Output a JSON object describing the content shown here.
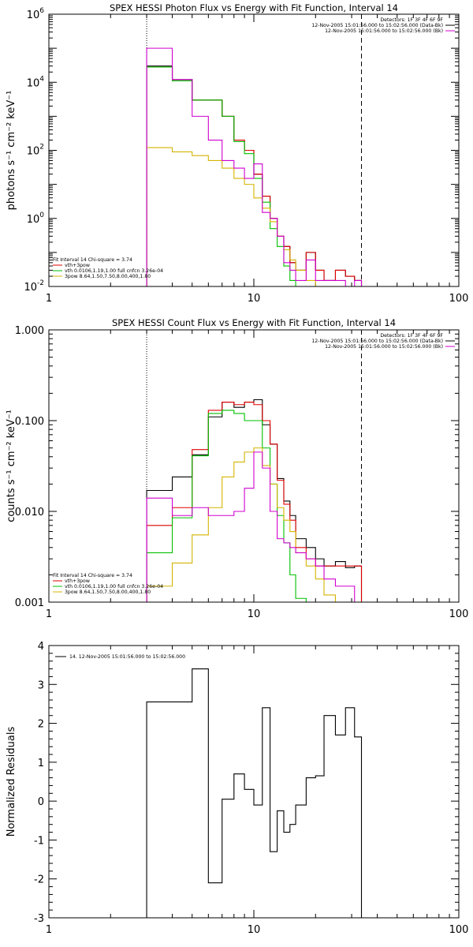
{
  "chart_data": [
    {
      "type": "line",
      "title": "SPEX HESSI Photon Flux vs Energy with Fit Function, Interval 14",
      "ylabel": "photons s⁻¹ cm⁻² keV⁻¹",
      "xscale": "log",
      "yscale": "log",
      "xlim": [
        1,
        100
      ],
      "ylim": [
        0.01,
        1000000
      ],
      "xticks": [
        "1",
        "10",
        "100"
      ],
      "ytick_values": [
        0.01,
        1,
        100,
        10000,
        1000000
      ],
      "ytick_labels": [
        [
          "10",
          "-2"
        ],
        [
          "10",
          "0"
        ],
        [
          "10",
          "2"
        ],
        [
          "10",
          "4"
        ],
        [
          "10",
          "6"
        ]
      ],
      "vlines": [
        {
          "x": 3,
          "style": "dotted"
        },
        {
          "x": 33.5,
          "style": "dashed"
        }
      ],
      "info_lines": [
        "Detectors: 1F 3F 4F 6F 9F",
        "12-Nov-2005 15:01:56.000 to 15:02:56.000 (Data-Bk)",
        "12-Nov-2005 15:01:56.000 to 15:02:56.000 (Bk)"
      ],
      "info_colors": [
        "",
        "#000000",
        "#d000d0"
      ],
      "fit_lines": [
        "Fit Interval 14   Chi-square = 3.74",
        "vth+3pow",
        "vth 0.0106,1.19,1.00  full cnfcn 3.26e-04",
        "3pow 8.64,1.50,7.50,8.00,400,1.80"
      ],
      "fit_colors": [
        "#000000",
        "#e00000",
        "#00c000",
        "#d4b400"
      ],
      "bin_edges": [
        3,
        4,
        5,
        6,
        7,
        8,
        9,
        10,
        11,
        12,
        13,
        14,
        15,
        16,
        18,
        20,
        22,
        25,
        28,
        31,
        33.5
      ],
      "series": [
        {
          "name": "data",
          "color": "#000000",
          "values": [
            30000,
            12000,
            3000,
            3000,
            1000,
            200,
            100,
            20,
            4.5,
            1.0,
            0.3,
            0.15,
            0.05,
            0.03,
            0.1,
            0.03,
            0.015,
            0.03,
            0.02,
            0.015
          ]
        },
        {
          "name": "vth+3pow",
          "color": "#e00000",
          "values": [
            28000,
            11000,
            3000,
            3000,
            1000,
            200,
            100,
            20,
            4.5,
            1.0,
            0.3,
            0.15,
            0.05,
            0.03,
            0.1,
            0.03,
            0.015,
            0.03,
            0.02,
            0.015
          ]
        },
        {
          "name": "vth",
          "color": "#00c000",
          "values": [
            28000,
            11000,
            3000,
            3000,
            1000,
            180,
            80,
            15,
            3.0,
            0.5,
            0.15,
            0.04,
            0.015,
            0.01,
            0.01,
            0.01,
            0.01,
            0.01,
            0.01,
            0.01
          ]
        },
        {
          "name": "3pow",
          "color": "#d4b400",
          "values": [
            120,
            90,
            70,
            50,
            30,
            15,
            10,
            4,
            2.0,
            0.8,
            0.3,
            0.12,
            0.06,
            0.03,
            0.015,
            0.01,
            0.01,
            0.01,
            0.01,
            0.01
          ]
        },
        {
          "name": "bk",
          "color": "#d000d0",
          "values": [
            100000,
            12000,
            1000,
            200,
            50,
            30,
            15,
            40,
            1.5,
            1.0,
            0.3,
            0.05,
            0.03,
            0.015,
            0.06,
            0.015,
            0.015,
            0.015,
            0.01,
            0.015
          ]
        }
      ]
    },
    {
      "type": "line",
      "title": "SPEX HESSI Count Flux vs Energy with Fit Function, Interval 14",
      "ylabel": "counts s⁻¹ cm⁻² keV⁻¹",
      "xscale": "log",
      "yscale": "log",
      "xlim": [
        1,
        100
      ],
      "ylim": [
        0.001,
        1.0
      ],
      "xticks": [
        "1",
        "10",
        "100"
      ],
      "ytick_values": [
        0.001,
        0.01,
        0.1,
        1.0
      ],
      "ytick_labels": [
        [
          "0.001",
          ""
        ],
        [
          "0.010",
          ""
        ],
        [
          "0.100",
          ""
        ],
        [
          "1.000",
          ""
        ]
      ],
      "vlines": [
        {
          "x": 3,
          "style": "dotted"
        },
        {
          "x": 33.5,
          "style": "dashed"
        }
      ],
      "info_lines": [
        "Detectors: 1F 3F 4F 6F 9F",
        "12-Nov-2005 15:01:56.000 to 15:02:56.000 (Data-Bk)",
        "12-Nov-2005 15:01:56.000 to 15:02:56.000 (Bk)"
      ],
      "info_colors": [
        "",
        "#000000",
        "#d000d0"
      ],
      "fit_lines": [
        "Fit Interval 14   Chi-square = 3.74",
        "vth+3pow",
        "vth 0.0106,1.19,1.00  full cnfcn 3.26e-04",
        "3pow 8.64,1.50,7.50,8.00,400,1.80"
      ],
      "fit_colors": [
        "#000000",
        "#e00000",
        "#00c000",
        "#d4b400"
      ],
      "bin_edges": [
        3,
        4,
        5,
        6,
        7,
        8,
        9,
        10,
        11,
        12,
        13,
        14,
        15,
        16,
        18,
        20,
        22,
        25,
        28,
        31,
        33.5
      ],
      "series": [
        {
          "name": "data",
          "color": "#000000",
          "values": [
            0.017,
            0.024,
            0.042,
            0.11,
            0.16,
            0.14,
            0.16,
            0.17,
            0.09,
            0.055,
            0.023,
            0.013,
            0.009,
            0.005,
            0.004,
            0.003,
            0.0025,
            0.0028,
            0.0024,
            0.0025
          ]
        },
        {
          "name": "vth+3pow",
          "color": "#e00000",
          "values": [
            0.007,
            0.011,
            0.048,
            0.13,
            0.16,
            0.15,
            0.16,
            0.15,
            0.1,
            0.055,
            0.022,
            0.012,
            0.008,
            0.004,
            0.003,
            0.0025,
            0.0025,
            0.0025,
            0.0025,
            0.0025
          ]
        },
        {
          "name": "vth",
          "color": "#00c000",
          "values": [
            0.0035,
            0.0085,
            0.041,
            0.12,
            0.13,
            0.12,
            0.1,
            0.1,
            0.05,
            0.02,
            0.009,
            0.0045,
            0.002,
            0.0011,
            0.001,
            0.001,
            0.001,
            0.001,
            0.001,
            0.001
          ]
        },
        {
          "name": "3pow",
          "color": "#d4b400",
          "values": [
            0.0015,
            0.0027,
            0.0055,
            0.011,
            0.024,
            0.035,
            0.045,
            0.05,
            0.032,
            0.02,
            0.011,
            0.008,
            0.006,
            0.0035,
            0.0025,
            0.0018,
            0.0012,
            0.001,
            0.001,
            0.001
          ]
        },
        {
          "name": "bk",
          "color": "#d000d0",
          "values": [
            0.014,
            0.009,
            0.011,
            0.009,
            0.009,
            0.01,
            0.018,
            0.045,
            0.03,
            0.01,
            0.005,
            0.0045,
            0.004,
            0.0035,
            0.003,
            0.0025,
            0.0018,
            0.0015,
            0.0015,
            0.001
          ]
        }
      ]
    },
    {
      "type": "line",
      "title": "",
      "ylabel": "Normalized Residuals",
      "xscale": "log",
      "yscale": "linear",
      "xlim": [
        1,
        100
      ],
      "ylim": [
        -3,
        4
      ],
      "xticks": [
        "1",
        "10",
        "100"
      ],
      "ytick_values": [
        -3,
        -2,
        -1,
        0,
        1,
        2,
        3,
        4
      ],
      "ytick_labels": [
        [
          "-3",
          ""
        ],
        [
          "-2",
          ""
        ],
        [
          "-1",
          ""
        ],
        [
          "0",
          ""
        ],
        [
          "1",
          ""
        ],
        [
          "2",
          ""
        ],
        [
          "3",
          ""
        ],
        [
          "4",
          ""
        ]
      ],
      "legend": "14. 12-Nov-2005 15:01:56.000 to 15:02:56.000",
      "bin_edges": [
        3,
        4,
        5,
        6,
        7,
        8,
        9,
        10,
        11,
        12,
        13,
        14,
        15,
        16,
        18,
        20,
        22,
        25,
        28,
        31,
        33.5
      ],
      "series": [
        {
          "name": "",
          "color": "#000000",
          "values": [
            2.55,
            2.55,
            3.4,
            -2.1,
            0.05,
            0.7,
            0.3,
            -0.1,
            2.4,
            -1.3,
            -0.25,
            -0.8,
            -0.6,
            -0.1,
            0.6,
            0.65,
            2.2,
            1.7,
            2.4,
            1.65
          ]
        }
      ]
    }
  ]
}
